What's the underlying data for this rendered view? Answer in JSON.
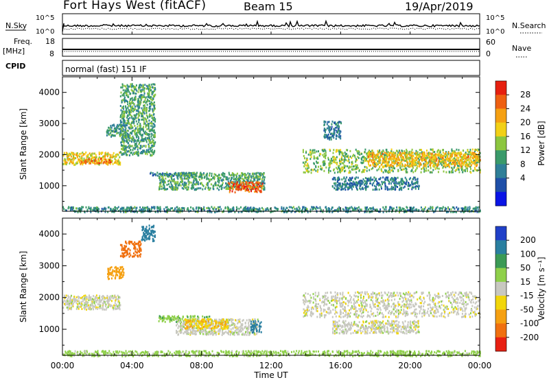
{
  "header": {
    "station": "Fort Hays West (fitACF)",
    "beam": "Beam 15",
    "date": "19/Apr/2019"
  },
  "params": {
    "nsky_label": "N.Sky",
    "nsky_ticks": [
      "10^5",
      "10^0"
    ],
    "nsearch_label": "N.Search",
    "nsearch_ticks": [
      "10^5",
      "10^0"
    ],
    "freq_label": [
      "Freq.",
      "[MHz]"
    ],
    "freq_ticks": [
      "18",
      "8"
    ],
    "nave_label": "Nave",
    "nave_ticks": [
      "60",
      "0"
    ],
    "cpid_label": "CPID",
    "cpid_value": "normal (fast) 151 IF"
  },
  "colors": {
    "power_scale": [
      "#0a14e6",
      "#1f4fa8",
      "#2f7f98",
      "#3a9a6a",
      "#8cc63f",
      "#f2d016",
      "#f5a012",
      "#ee6012",
      "#e62010"
    ],
    "velocity_scale": [
      "#2040c8",
      "#2a7fa0",
      "#3b9a55",
      "#8fd04a",
      "#c8c8c0",
      "#f2d60a",
      "#f5a012",
      "#f07010",
      "#e82012"
    ]
  },
  "chart_data": [
    {
      "type": "heatmap",
      "title": "",
      "xlabel": "Time UT",
      "ylabel": "Slant Range [km]",
      "xlim": [
        "00:00",
        "00:00"
      ],
      "x_ticks": [
        "00:00",
        "04:00",
        "08:00",
        "12:00",
        "16:00",
        "20:00",
        "00:00"
      ],
      "ylim": [
        180,
        4500
      ],
      "y_ticks": [
        1000,
        2000,
        3000,
        4000
      ],
      "colorbar": {
        "label": "Power [dB]",
        "range": [
          0,
          30
        ],
        "ticks": [
          28,
          24,
          20,
          16,
          12,
          8,
          4
        ]
      },
      "echo_regions": [
        {
          "t_start_h": 0.0,
          "t_end_h": 3.3,
          "range_km": [
            1700,
            2100
          ],
          "value": 18
        },
        {
          "t_start_h": 1.0,
          "t_end_h": 2.8,
          "range_km": [
            1750,
            1900
          ],
          "value": 24
        },
        {
          "t_start_h": 2.5,
          "t_end_h": 3.5,
          "range_km": [
            2600,
            3000
          ],
          "value": 10
        },
        {
          "t_start_h": 3.3,
          "t_end_h": 5.3,
          "range_km": [
            2000,
            4300
          ],
          "value": 12
        },
        {
          "t_start_h": 5.0,
          "t_end_h": 7.5,
          "range_km": [
            1350,
            1450
          ],
          "value": 8
        },
        {
          "t_start_h": 5.5,
          "t_end_h": 11.6,
          "range_km": [
            900,
            1450
          ],
          "value": 12
        },
        {
          "t_start_h": 9.5,
          "t_end_h": 11.5,
          "range_km": [
            820,
            1150
          ],
          "value": 26
        },
        {
          "t_start_h": 13.8,
          "t_end_h": 24.0,
          "range_km": [
            1450,
            2200
          ],
          "value": 14
        },
        {
          "t_start_h": 17.5,
          "t_end_h": 24.0,
          "range_km": [
            1650,
            2100
          ],
          "value": 20
        },
        {
          "t_start_h": 15.5,
          "t_end_h": 20.5,
          "range_km": [
            900,
            1300
          ],
          "value": 8
        },
        {
          "t_start_h": 15.0,
          "t_end_h": 16.0,
          "range_km": [
            2500,
            3100
          ],
          "value": 8
        },
        {
          "t_start_h": 0.0,
          "t_end_h": 24.0,
          "range_km": [
            180,
            350
          ],
          "value": 10
        }
      ]
    },
    {
      "type": "heatmap",
      "title": "",
      "xlabel": "Time UT",
      "ylabel": "Slant Range [km]",
      "xlim": [
        "00:00",
        "00:00"
      ],
      "x_ticks": [
        "00:00",
        "04:00",
        "08:00",
        "12:00",
        "16:00",
        "20:00",
        "00:00"
      ],
      "ylim": [
        180,
        4500
      ],
      "y_ticks": [
        1000,
        2000,
        3000,
        4000
      ],
      "colorbar": {
        "label": "Velocity [m s⁻¹]",
        "range": [
          -250,
          250
        ],
        "ticks": [
          200,
          100,
          50,
          15,
          -15,
          -50,
          -100,
          -200
        ]
      },
      "echo_regions": [
        {
          "t_start_h": 0.0,
          "t_end_h": 3.3,
          "range_km": [
            1650,
            2100
          ],
          "value": 0
        },
        {
          "t_start_h": 2.5,
          "t_end_h": 3.5,
          "range_km": [
            2600,
            3000
          ],
          "value": -80
        },
        {
          "t_start_h": 3.3,
          "t_end_h": 4.5,
          "range_km": [
            3300,
            3800
          ],
          "value": -120
        },
        {
          "t_start_h": 4.5,
          "t_end_h": 5.3,
          "range_km": [
            3800,
            4300
          ],
          "value": 180
        },
        {
          "t_start_h": 5.5,
          "t_end_h": 8.5,
          "range_km": [
            1250,
            1450
          ],
          "value": 40
        },
        {
          "t_start_h": 6.5,
          "t_end_h": 11.2,
          "range_km": [
            850,
            1350
          ],
          "value": 0
        },
        {
          "t_start_h": 7.0,
          "t_end_h": 9.5,
          "range_km": [
            1050,
            1350
          ],
          "value": -40
        },
        {
          "t_start_h": 10.8,
          "t_end_h": 11.4,
          "range_km": [
            900,
            1300
          ],
          "value": 120
        },
        {
          "t_start_h": 13.8,
          "t_end_h": 24.0,
          "range_km": [
            1400,
            2200
          ],
          "value": 0
        },
        {
          "t_start_h": 15.5,
          "t_end_h": 20.5,
          "range_km": [
            900,
            1300
          ],
          "value": 0
        },
        {
          "t_start_h": 0.0,
          "t_end_h": 24.0,
          "range_km": [
            180,
            350
          ],
          "value": 30
        }
      ]
    }
  ]
}
